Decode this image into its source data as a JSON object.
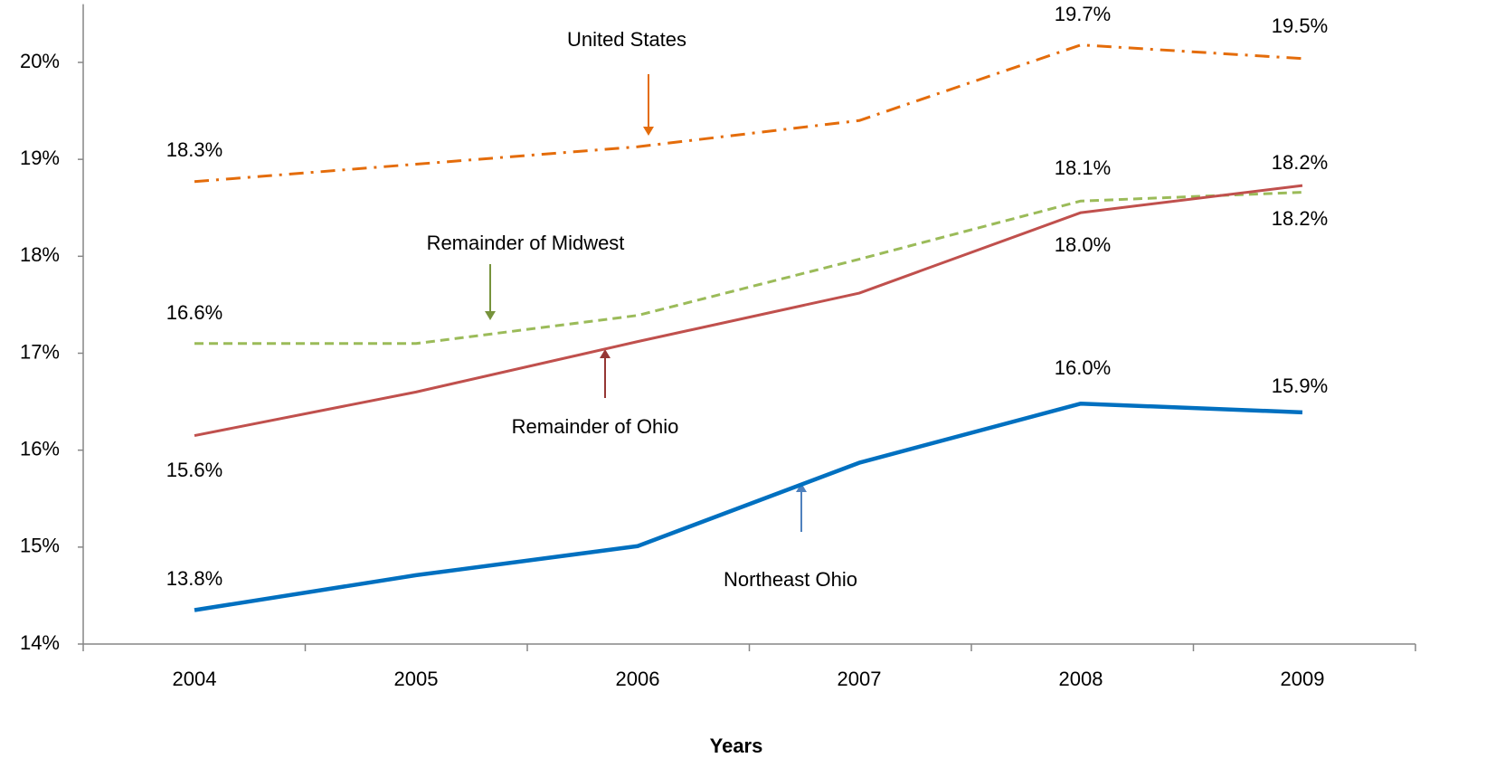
{
  "chart_data": {
    "type": "line",
    "x_label": "Years",
    "categories": [
      "2004",
      "2005",
      "2006",
      "2007",
      "2008",
      "2009"
    ],
    "ylim": [
      14,
      20.6
    ],
    "yticks": [
      {
        "value": 14,
        "label": "14%"
      },
      {
        "value": 15,
        "label": "15%"
      },
      {
        "value": 16,
        "label": "16%"
      },
      {
        "value": 17,
        "label": "17%"
      },
      {
        "value": 18,
        "label": "18%"
      },
      {
        "value": 19,
        "label": "19%"
      },
      {
        "value": 20,
        "label": "20%"
      }
    ],
    "series": [
      {
        "name": "United States",
        "color": "#e46c0a",
        "values": [
          18.77,
          18.95,
          19.13,
          19.4,
          20.18,
          20.04
        ],
        "annotations": [
          "18.3%",
          "19.7%",
          "19.5%"
        ]
      },
      {
        "name": "Remainder of Midwest",
        "color": "#9bbb59",
        "values": [
          17.1,
          17.1,
          17.39,
          17.97,
          18.57,
          18.66
        ],
        "annotations": [
          "16.6%",
          "18.1%",
          "18.2%"
        ]
      },
      {
        "name": "Remainder of Ohio",
        "color": "#c0504d",
        "values": [
          16.15,
          16.6,
          17.12,
          17.62,
          18.45,
          18.73
        ],
        "annotations": [
          "15.6%",
          "18.0%",
          "18.2%"
        ]
      },
      {
        "name": "Northeast Ohio",
        "color": "#0070c0",
        "values": [
          14.35,
          14.71,
          15.01,
          15.87,
          16.48,
          16.39
        ],
        "annotations": [
          "13.8%",
          "16.0%",
          "15.9%"
        ]
      }
    ]
  }
}
